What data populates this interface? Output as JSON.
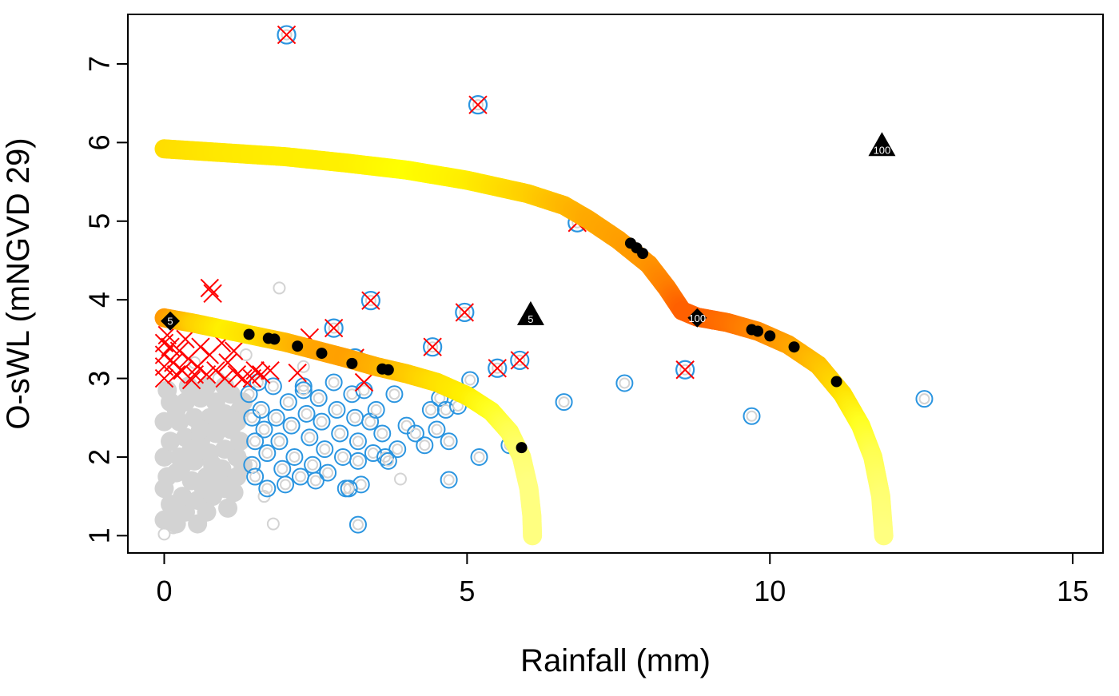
{
  "chart_data": {
    "type": "scatter",
    "xlabel": "Rainfall (mm)",
    "ylabel": "O-sWL (mNGVD 29)",
    "xlim": [
      -0.6,
      15.5
    ],
    "ylim": [
      0.78,
      7.63
    ],
    "xticks": [
      0,
      5,
      10,
      15
    ],
    "yticks": [
      1,
      2,
      3,
      4,
      5,
      6,
      7
    ],
    "grid": false,
    "colors": {
      "gray": "#d3d3d3",
      "blue": "#2b95e0",
      "red": "#ff0000",
      "black": "#000000",
      "curve_yellow": "#ffff00",
      "curve_orange": "#ff6a00",
      "curve_light": "#ffff80"
    },
    "gray_points": [
      [
        0,
        1.02
      ],
      [
        0,
        1.2
      ],
      [
        0.2,
        1.15
      ],
      [
        0.35,
        1.3
      ],
      [
        0.1,
        1.4
      ],
      [
        0.3,
        1.5
      ],
      [
        0.55,
        1.45
      ],
      [
        0.8,
        1.5
      ],
      [
        1.0,
        1.6
      ],
      [
        1.2,
        1.75
      ],
      [
        0,
        1.6
      ],
      [
        0.2,
        1.8
      ],
      [
        0.45,
        1.7
      ],
      [
        0.7,
        1.75
      ],
      [
        0.95,
        1.85
      ],
      [
        0,
        2.0
      ],
      [
        0.25,
        2.0
      ],
      [
        0.5,
        1.95
      ],
      [
        0.75,
        2.05
      ],
      [
        1.0,
        2.1
      ],
      [
        1.2,
        2.0
      ],
      [
        0.1,
        2.2
      ],
      [
        0.35,
        2.25
      ],
      [
        0.6,
        2.2
      ],
      [
        0.85,
        2.3
      ],
      [
        1.1,
        2.35
      ],
      [
        0,
        2.45
      ],
      [
        0.25,
        2.45
      ],
      [
        0.5,
        2.5
      ],
      [
        0.75,
        2.5
      ],
      [
        1.0,
        2.55
      ],
      [
        1.25,
        2.6
      ],
      [
        0.1,
        2.7
      ],
      [
        0.35,
        2.7
      ],
      [
        0.6,
        2.75
      ],
      [
        0.85,
        2.7
      ],
      [
        1.1,
        2.8
      ],
      [
        0.05,
        2.85
      ],
      [
        0.4,
        2.9
      ],
      [
        0.7,
        2.9
      ],
      [
        1.0,
        2.9
      ],
      [
        1.25,
        2.2
      ],
      [
        1.2,
        2.45
      ],
      [
        0.15,
        1.1
      ],
      [
        0.55,
        1.15
      ],
      [
        1.8,
        1.15
      ],
      [
        1.65,
        1.5
      ],
      [
        1.9,
        4.15
      ],
      [
        1.3,
        1.9
      ],
      [
        1.05,
        1.35
      ],
      [
        0.65,
        1.6
      ],
      [
        0.9,
        1.7
      ],
      [
        0.2,
        2.6
      ],
      [
        0.6,
        2.35
      ],
      [
        0.95,
        2.45
      ],
      [
        1.3,
        2.7
      ],
      [
        0.3,
        1.9
      ],
      [
        0.8,
        1.9
      ],
      [
        1.15,
        1.55
      ],
      [
        0.45,
        2.1
      ],
      [
        0.05,
        1.75
      ],
      [
        0.15,
        1.3
      ],
      [
        0.7,
        1.3
      ],
      [
        3.9,
        1.72
      ],
      [
        2.3,
        3.15
      ],
      [
        1.35,
        3.3
      ],
      [
        0.5,
        3.2
      ],
      [
        0.9,
        3.0
      ]
    ],
    "blue_points": [
      [
        1.4,
        2.8
      ],
      [
        1.45,
        2.5
      ],
      [
        1.5,
        2.2
      ],
      [
        1.45,
        1.9
      ],
      [
        1.5,
        1.75
      ],
      [
        1.6,
        2.6
      ],
      [
        1.65,
        2.35
      ],
      [
        1.7,
        2.05
      ],
      [
        1.7,
        1.6
      ],
      [
        1.8,
        2.9
      ],
      [
        1.85,
        2.5
      ],
      [
        1.9,
        2.2
      ],
      [
        1.95,
        1.85
      ],
      [
        2.0,
        1.65
      ],
      [
        2.05,
        2.7
      ],
      [
        2.1,
        2.4
      ],
      [
        2.15,
        2.0
      ],
      [
        2.25,
        1.75
      ],
      [
        2.3,
        2.9
      ],
      [
        2.35,
        2.55
      ],
      [
        2.4,
        2.25
      ],
      [
        2.45,
        1.9
      ],
      [
        2.5,
        1.7
      ],
      [
        2.55,
        2.75
      ],
      [
        2.6,
        2.45
      ],
      [
        2.65,
        2.1
      ],
      [
        2.7,
        1.8
      ],
      [
        2.8,
        2.95
      ],
      [
        2.85,
        2.6
      ],
      [
        2.9,
        2.3
      ],
      [
        2.95,
        2.0
      ],
      [
        3.0,
        1.6
      ],
      [
        3.1,
        2.8
      ],
      [
        3.15,
        2.5
      ],
      [
        3.2,
        2.2
      ],
      [
        3.2,
        1.95
      ],
      [
        3.25,
        1.65
      ],
      [
        3.3,
        2.85
      ],
      [
        3.4,
        2.45
      ],
      [
        3.45,
        2.05
      ],
      [
        3.5,
        2.6
      ],
      [
        3.6,
        2.3
      ],
      [
        3.65,
        2.0
      ],
      [
        3.7,
        1.95
      ],
      [
        3.8,
        2.8
      ],
      [
        3.85,
        2.1
      ],
      [
        4.0,
        2.4
      ],
      [
        4.15,
        2.3
      ],
      [
        4.3,
        2.15
      ],
      [
        4.4,
        2.6
      ],
      [
        4.5,
        2.35
      ],
      [
        4.55,
        2.75
      ],
      [
        4.65,
        2.6
      ],
      [
        4.7,
        2.2
      ],
      [
        4.7,
        1.71
      ],
      [
        4.85,
        2.65
      ],
      [
        5.05,
        2.98
      ],
      [
        5.2,
        2.0
      ],
      [
        5.7,
        2.15
      ],
      [
        6.6,
        2.7
      ],
      [
        7.6,
        2.94
      ],
      [
        9.7,
        2.52
      ],
      [
        12.55,
        2.74
      ],
      [
        3.2,
        1.14
      ],
      [
        3.05,
        1.6
      ],
      [
        2.3,
        2.85
      ],
      [
        1.55,
        2.95
      ]
    ],
    "red_x_points": [
      [
        0.75,
        4.15
      ],
      [
        0.8,
        4.08
      ],
      [
        2.4,
        3.52
      ],
      [
        3.3,
        2.95
      ],
      [
        2.2,
        3.07
      ],
      [
        0,
        3.45
      ],
      [
        0,
        3.3
      ],
      [
        0,
        3.15
      ],
      [
        0,
        3.0
      ],
      [
        0.1,
        3.4
      ],
      [
        0.15,
        3.2
      ],
      [
        0.2,
        3.05
      ],
      [
        0.25,
        3.35
      ],
      [
        0.3,
        3.1
      ],
      [
        0.4,
        3.25
      ],
      [
        0.45,
        2.98
      ],
      [
        0.55,
        3.15
      ],
      [
        0.6,
        3.4
      ],
      [
        0.7,
        3.05
      ],
      [
        0.75,
        3.3
      ],
      [
        0.85,
        3.1
      ],
      [
        0.95,
        3.45
      ],
      [
        1.0,
        3.0
      ],
      [
        1.05,
        3.2
      ],
      [
        1.15,
        3.35
      ],
      [
        1.2,
        3.05
      ],
      [
        1.3,
        3.0
      ],
      [
        1.5,
        3.1
      ],
      [
        1.6,
        3.05
      ],
      [
        1.75,
        3.1
      ],
      [
        0.05,
        3.55
      ],
      [
        0.35,
        3.5
      ],
      [
        1.45,
        3.0
      ],
      [
        0.5,
        3.05
      ]
    ],
    "blue_with_x_points": [
      [
        2.02,
        7.37
      ],
      [
        5.18,
        6.48
      ],
      [
        6.82,
        4.98
      ],
      [
        3.41,
        3.99
      ],
      [
        4.96,
        3.84
      ],
      [
        2.8,
        3.64
      ],
      [
        4.43,
        3.4
      ],
      [
        5.5,
        3.13
      ],
      [
        5.87,
        3.23
      ],
      [
        8.6,
        3.11
      ],
      [
        3.15,
        3.26
      ]
    ],
    "curves": [
      {
        "label": "5",
        "points": [
          [
            0,
            3.77
          ],
          [
            0.5,
            3.7
          ],
          [
            1,
            3.62
          ],
          [
            1.5,
            3.54
          ],
          [
            2,
            3.46
          ],
          [
            2.5,
            3.36
          ],
          [
            3,
            3.26
          ],
          [
            3.5,
            3.15
          ],
          [
            4,
            3.06
          ],
          [
            4.5,
            2.95
          ],
          [
            5,
            2.78
          ],
          [
            5.4,
            2.58
          ],
          [
            5.7,
            2.32
          ],
          [
            5.9,
            2.0
          ],
          [
            6.02,
            1.6
          ],
          [
            6.07,
            1.25
          ],
          [
            6.08,
            1.0
          ]
        ],
        "colors": [
          "#ff9900",
          "#ffd000",
          "#fff000",
          "#ffdd00",
          "#ffbb00",
          "#ffa500",
          "#ffa000",
          "#ffb000",
          "#ffc800",
          "#ffe000",
          "#fff000",
          "#ffff20",
          "#ffff50",
          "#ffff70",
          "#ffff80",
          "#ffff80",
          "#ffff80"
        ]
      },
      {
        "label": "100",
        "points": [
          [
            0,
            5.92
          ],
          [
            1,
            5.87
          ],
          [
            2,
            5.82
          ],
          [
            3,
            5.74
          ],
          [
            4,
            5.65
          ],
          [
            5,
            5.52
          ],
          [
            6,
            5.35
          ],
          [
            6.6,
            5.2
          ],
          [
            7,
            5.02
          ],
          [
            7.5,
            4.76
          ],
          [
            8,
            4.45
          ],
          [
            8.3,
            4.15
          ],
          [
            8.55,
            3.86
          ],
          [
            8.8,
            3.78
          ],
          [
            9.3,
            3.71
          ],
          [
            9.8,
            3.6
          ],
          [
            10.3,
            3.43
          ],
          [
            10.8,
            3.17
          ],
          [
            11.2,
            2.8
          ],
          [
            11.5,
            2.4
          ],
          [
            11.7,
            2.0
          ],
          [
            11.83,
            1.5
          ],
          [
            11.88,
            1.0
          ]
        ],
        "colors": [
          "#ffdd00",
          "#ffe800",
          "#ffee00",
          "#fff000",
          "#ffff00",
          "#ffee00",
          "#ffd000",
          "#ffb800",
          "#ffaa00",
          "#ffa000",
          "#ff9500",
          "#ff8000",
          "#ff6000",
          "#ff6000",
          "#ff7000",
          "#ff8800",
          "#ffa000",
          "#ffc000",
          "#ffe000",
          "#ffff20",
          "#ffff50",
          "#ffff70",
          "#ffff80"
        ]
      }
    ],
    "black_points": [
      [
        1.4,
        3.56
      ],
      [
        1.72,
        3.51
      ],
      [
        1.82,
        3.5
      ],
      [
        2.2,
        3.41
      ],
      [
        2.6,
        3.32
      ],
      [
        3.1,
        3.19
      ],
      [
        3.6,
        3.12
      ],
      [
        3.7,
        3.11
      ],
      [
        5.9,
        2.12
      ],
      [
        7.7,
        4.72
      ],
      [
        7.8,
        4.66
      ],
      [
        7.9,
        4.59
      ],
      [
        9.7,
        3.62
      ],
      [
        9.8,
        3.6
      ],
      [
        10.0,
        3.54
      ],
      [
        10.4,
        3.4
      ],
      [
        11.1,
        2.96
      ]
    ],
    "triangles": [
      {
        "x": 6.05,
        "y": 3.8,
        "label": "5"
      },
      {
        "x": 11.85,
        "y": 5.95,
        "label": "100"
      }
    ],
    "diamonds": [
      {
        "x": 0.1,
        "y": 3.73,
        "label": "5"
      },
      {
        "x": 8.8,
        "y": 3.77,
        "label": "100"
      }
    ]
  }
}
